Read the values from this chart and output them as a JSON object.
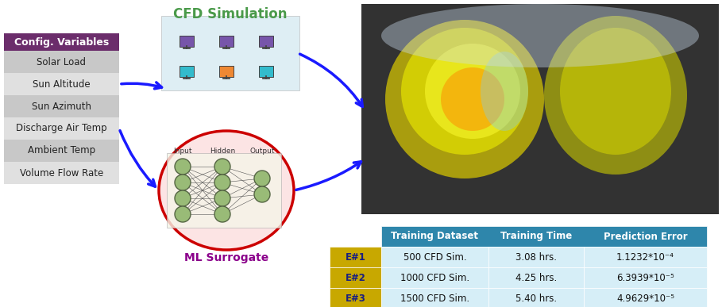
{
  "title": "CFD Simulation",
  "ml_label": "ML Surrogate",
  "config_header": "Config. Variables",
  "config_items": [
    "Solar Load",
    "Sun Altitude",
    "Sun Azimuth",
    "Discharge Air Temp",
    "Ambient Temp",
    "Volume Flow Rate"
  ],
  "table_headers": [
    "Training Dataset",
    "Training Time",
    "Prediction Error"
  ],
  "table_rows": [
    [
      "E#1",
      "500 CFD Sim.",
      "3.08 hrs.",
      "1.1232*10⁻⁴"
    ],
    [
      "E#2",
      "1000 CFD Sim.",
      "4.25 hrs.",
      "6.3939*10⁻⁵"
    ],
    [
      "E#3",
      "1500 CFD Sim.",
      "5.40 hrs.",
      "4.9629*10⁻⁵"
    ]
  ],
  "header_bg": "#2e86ab",
  "header_text": "#ffffff",
  "row_bg": "#d6eef7",
  "row_label_bg": "#e8c000",
  "row_label_text": "#1a3a6b",
  "config_header_bg": "#6b2d6b",
  "config_header_text": "#ffffff",
  "config_item_bg": "#d8d8d8",
  "config_item_text": "#222222",
  "cfd_title_color": "#4a9a4a",
  "ml_label_color": "#8b008b",
  "arrow_color": "#1a1aff",
  "bg_color": "#ffffff"
}
